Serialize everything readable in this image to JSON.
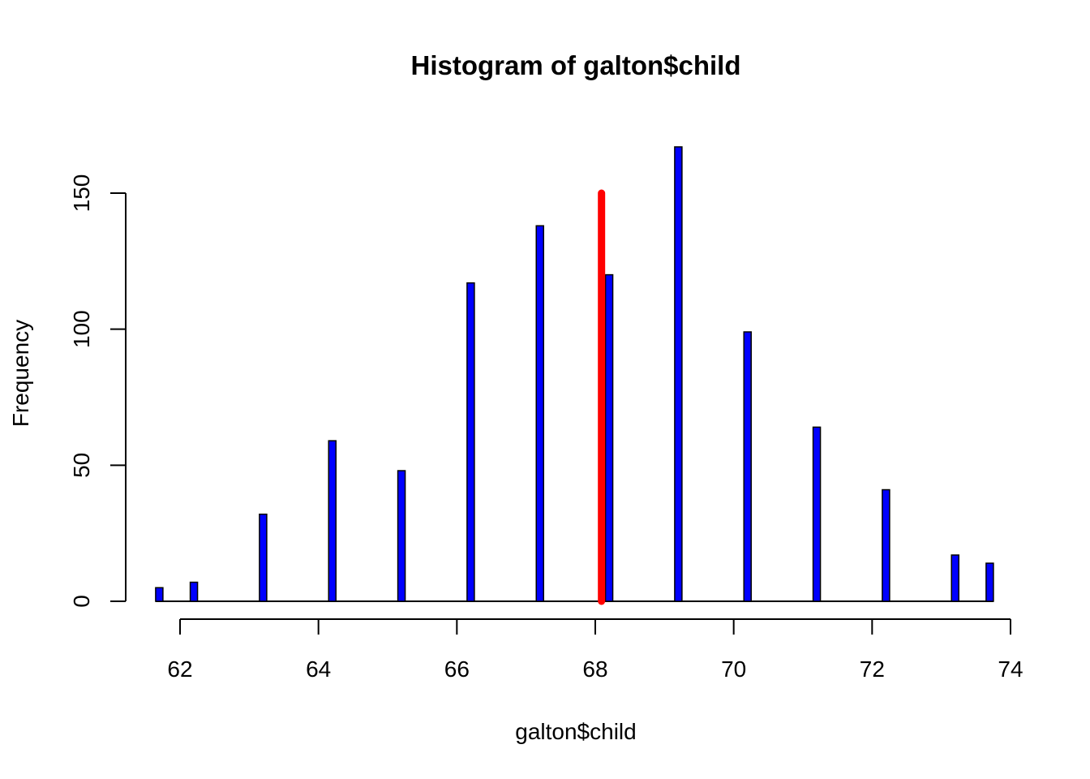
{
  "chart_data": {
    "type": "bar",
    "title": "Histogram of galton$child",
    "xlabel": "galton$child",
    "ylabel": "Frequency",
    "xlim": [
      62,
      74
    ],
    "ylim": [
      0,
      150
    ],
    "x_ticks": [
      62,
      64,
      66,
      68,
      70,
      72,
      74
    ],
    "y_ticks": [
      0,
      50,
      100,
      150
    ],
    "bar_color": "#0000ff",
    "bar_border": "#000000",
    "x": [
      61.7,
      62.2,
      63.2,
      64.2,
      65.2,
      66.2,
      67.2,
      68.2,
      69.2,
      70.2,
      71.2,
      72.2,
      73.2,
      73.7
    ],
    "values": [
      5,
      7,
      32,
      59,
      48,
      117,
      138,
      120,
      167,
      99,
      64,
      41,
      17,
      14
    ],
    "reference_line": {
      "x": 68.09,
      "y_from": 0,
      "y_to": 150,
      "color": "#ff0000"
    }
  }
}
